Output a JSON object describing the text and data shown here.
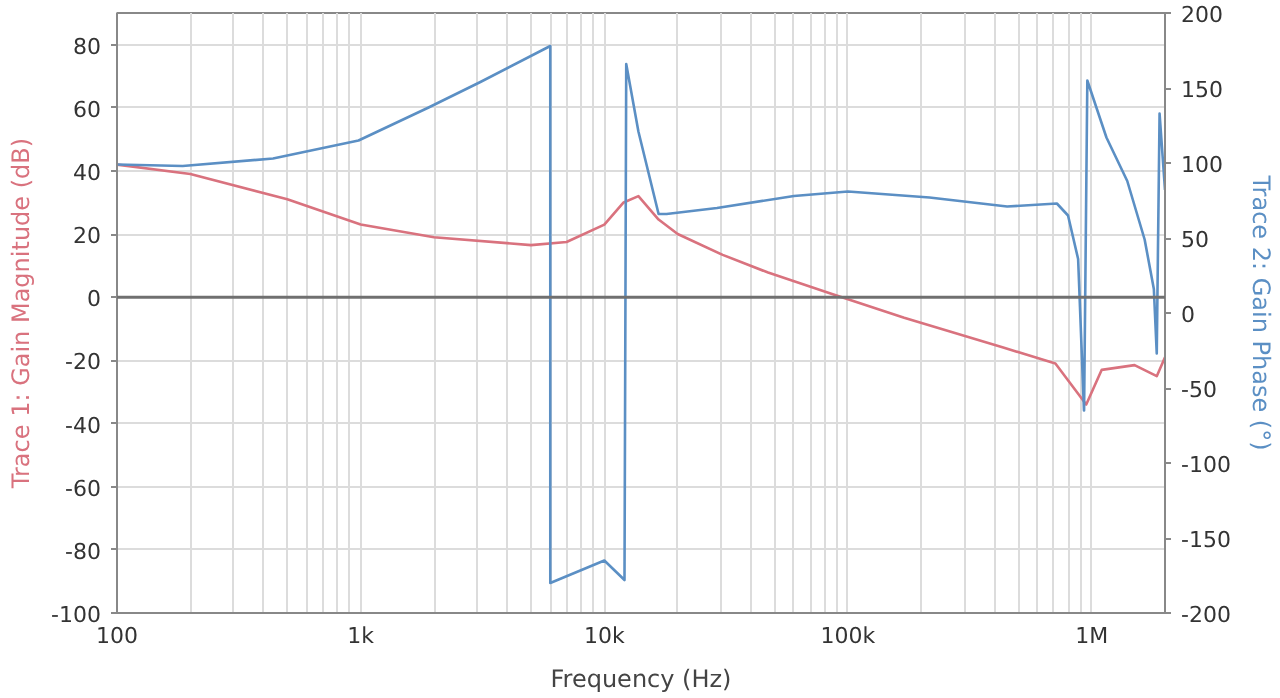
{
  "chart_data": {
    "type": "line",
    "xlabel": "Frequency (Hz)",
    "ylabel": "Trace 1: Gain Magnitude (dB)",
    "y2label": "Trace 2: Gain Phase (°)",
    "log": "x",
    "grid": true,
    "line_style": "solid",
    "marker": "none",
    "xlim": [
      100,
      2000000
    ],
    "ylim": [
      -100,
      90
    ],
    "y2lim": [
      -200,
      200
    ],
    "xticks": [
      {
        "value": 100,
        "label": "100"
      },
      {
        "value": 200,
        "label": null
      },
      {
        "value": 300,
        "label": null
      },
      {
        "value": 400,
        "label": null
      },
      {
        "value": 500,
        "label": null
      },
      {
        "value": 600,
        "label": null
      },
      {
        "value": 700,
        "label": null
      },
      {
        "value": 800,
        "label": null
      },
      {
        "value": 900,
        "label": null
      },
      {
        "value": 1000,
        "label": "1k"
      },
      {
        "value": 2000,
        "label": null
      },
      {
        "value": 3000,
        "label": null
      },
      {
        "value": 4000,
        "label": null
      },
      {
        "value": 5000,
        "label": null
      },
      {
        "value": 6000,
        "label": null
      },
      {
        "value": 7000,
        "label": null
      },
      {
        "value": 8000,
        "label": null
      },
      {
        "value": 9000,
        "label": null
      },
      {
        "value": 10000,
        "label": "10k"
      },
      {
        "value": 20000,
        "label": null
      },
      {
        "value": 30000,
        "label": null
      },
      {
        "value": 40000,
        "label": null
      },
      {
        "value": 50000,
        "label": null
      },
      {
        "value": 60000,
        "label": null
      },
      {
        "value": 70000,
        "label": null
      },
      {
        "value": 80000,
        "label": null
      },
      {
        "value": 90000,
        "label": null
      },
      {
        "value": 100000,
        "label": "100k"
      },
      {
        "value": 200000,
        "label": null
      },
      {
        "value": 300000,
        "label": null
      },
      {
        "value": 400000,
        "label": null
      },
      {
        "value": 500000,
        "label": null
      },
      {
        "value": 600000,
        "label": null
      },
      {
        "value": 700000,
        "label": null
      },
      {
        "value": 800000,
        "label": null
      },
      {
        "value": 900000,
        "label": null
      },
      {
        "value": 1000000,
        "label": "1M"
      }
    ],
    "yticks": [
      -100,
      -80,
      -60,
      -40,
      -20,
      0,
      20,
      40,
      60,
      80
    ],
    "y2ticks": [
      -200,
      -150,
      -100,
      -50,
      0,
      50,
      100,
      150,
      200
    ],
    "ref_lines": [
      {
        "axis": "y",
        "value": 0,
        "label": null,
        "color": "#707070"
      }
    ],
    "series": [
      {
        "color": "#d9727e",
        "x": [
          100,
          200,
          500,
          1000,
          2000,
          5000,
          7000,
          10000,
          12000,
          13800,
          16700,
          20000,
          30600,
          47000,
          86000,
          170000,
          437000,
          710000,
          950000,
          1100000,
          1500000,
          1850000,
          2000000
        ],
        "values": [
          42,
          39,
          31,
          23,
          19,
          16.5,
          17.5,
          23,
          30,
          32,
          24.6,
          20,
          13.4,
          7.8,
          1,
          -6.5,
          -16,
          -21,
          -34,
          -23,
          -21.5,
          -25,
          -19
        ]
      },
      {
        "color": "#5b8fc4",
        "axis": "y2",
        "x": [
          100,
          186,
          437,
          980,
          1900,
          3100,
          6000,
          6001,
          10000,
          12100,
          12300,
          13800,
          16700,
          18000,
          29000,
          60000,
          100000,
          216000,
          450000,
          720000,
          800000,
          880000,
          930000,
          931000,
          960000,
          1150000,
          1400000,
          1650000,
          1800000,
          1850000,
          1900000,
          2000000
        ],
        "values": [
          99,
          98,
          103,
          115,
          137,
          154,
          178,
          -180,
          -165,
          -178,
          166,
          121,
          66,
          66,
          70,
          78,
          81,
          77,
          71,
          73,
          65,
          36,
          -65,
          -65,
          155,
          117,
          88,
          49,
          16,
          -27,
          133,
          82
        ]
      }
    ]
  }
}
